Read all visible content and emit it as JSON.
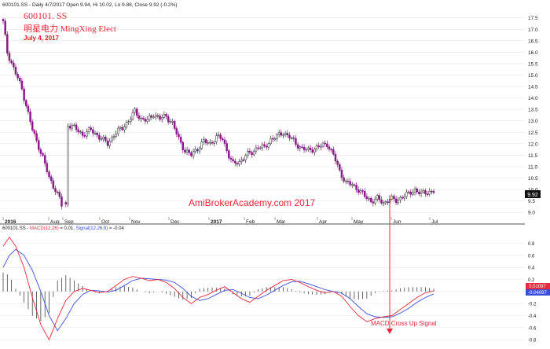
{
  "header": {
    "top_text": "600101.SS - Daily 4/7/2017 Open 9.94, Hi 10.02, Lo 9.88, Close 9.92 (-0.2%)",
    "symbol": "600101. SS",
    "name": "明星电力   MingXing Elect",
    "date": "July 4, 2017",
    "watermark": "AmiBrokerAcademy.com  2017"
  },
  "macd_header": {
    "prefix": "600101.SS - ",
    "macd_label": "MACD(12,26)",
    "macd_value": " = 0.01, ",
    "signal_label": "Signal(12,26,9)",
    "signal_value": " = -0.04"
  },
  "annotation": "MACD Cross Up Signal",
  "price_tag": "9.92",
  "macd_tags": [
    "0.01097",
    "-0.04097"
  ],
  "colors": {
    "up_candle": "#ffffff",
    "down_candle": "#8b1a8b",
    "candle_outline": "#333333",
    "macd_line": "#e8283c",
    "signal_line": "#3a4fd8",
    "histogram": "#444444",
    "red_text": "#e8283c",
    "date_text": "#d42020",
    "grid": "#e6e6e6"
  },
  "chart_data": [
    {
      "type": "candlestick",
      "title": "600101.SS - Daily 4/7/2017 Open 9.94, Hi 10.02, Lo 9.88, Close 9.92 (-0.2%)",
      "x_tick_labels": [
        "2016",
        "Aug",
        "Sep",
        "Oct",
        "Nov",
        "Dec",
        "2017",
        "Feb",
        "Mar",
        "Apr",
        "May",
        "Jun",
        "Jul"
      ],
      "y_tick_labels": [
        "9.0",
        "9.5",
        "10.0",
        "10.5",
        "11.0",
        "11.5",
        "12.0",
        "12.5",
        "13.0",
        "13.5",
        "14.0",
        "14.5",
        "15.0",
        "15.5",
        "16.0",
        "16.5",
        "17.0",
        "17.5"
      ],
      "ylim": [
        8.8,
        17.8
      ],
      "last_close": 9.92,
      "close_path": [
        [
          0,
          17.3
        ],
        [
          2,
          16.0
        ],
        [
          5,
          15.3
        ],
        [
          9,
          14.4
        ],
        [
          14,
          12.6
        ],
        [
          19,
          11.4
        ],
        [
          22,
          10.5
        ],
        [
          25,
          10.0
        ],
        [
          27,
          9.6
        ],
        [
          28,
          9.3
        ],
        [
          30,
          12.9
        ],
        [
          34,
          12.7
        ],
        [
          38,
          12.4
        ],
        [
          42,
          12.6
        ],
        [
          46,
          12.3
        ],
        [
          50,
          12.0
        ],
        [
          53,
          12.4
        ],
        [
          57,
          12.7
        ],
        [
          60,
          13.0
        ],
        [
          63,
          13.4
        ],
        [
          66,
          13.1
        ],
        [
          69,
          13.0
        ],
        [
          72,
          13.3
        ],
        [
          75,
          13.1
        ],
        [
          78,
          13.2
        ],
        [
          81,
          12.9
        ],
        [
          84,
          12.2
        ],
        [
          87,
          11.7
        ],
        [
          90,
          11.5
        ],
        [
          93,
          11.8
        ],
        [
          96,
          12.1
        ],
        [
          99,
          12.0
        ],
        [
          102,
          12.3
        ],
        [
          105,
          12.2
        ],
        [
          108,
          11.5
        ],
        [
          110,
          11.1
        ],
        [
          113,
          11.2
        ],
        [
          116,
          11.5
        ],
        [
          119,
          11.6
        ],
        [
          122,
          11.9
        ],
        [
          125,
          11.8
        ],
        [
          128,
          12.2
        ],
        [
          131,
          12.3
        ],
        [
          134,
          12.5
        ],
        [
          137,
          12.3
        ],
        [
          140,
          12.0
        ],
        [
          143,
          11.8
        ],
        [
          146,
          11.7
        ],
        [
          149,
          11.8
        ],
        [
          152,
          11.9
        ],
        [
          155,
          12.0
        ],
        [
          158,
          11.5
        ],
        [
          161,
          10.8
        ],
        [
          164,
          10.3
        ],
        [
          167,
          10.2
        ],
        [
          170,
          10.0
        ],
        [
          173,
          9.7
        ],
        [
          176,
          9.5
        ],
        [
          179,
          9.6
        ],
        [
          182,
          9.4
        ],
        [
          185,
          9.6
        ],
        [
          188,
          9.5
        ],
        [
          191,
          9.7
        ],
        [
          194,
          9.8
        ],
        [
          197,
          10.0
        ],
        [
          200,
          9.8
        ],
        [
          203,
          9.9
        ],
        [
          206,
          9.92
        ]
      ]
    },
    {
      "type": "line",
      "title": "600101.SS - MACD(12,26) = 0.01, Signal(12,26,9) = -0.04",
      "y_tick_labels": [
        "-0.8",
        "-0.6",
        "-0.4",
        "-0.2",
        "0",
        "0.2",
        "0.4",
        "0.6",
        "0.8"
      ],
      "ylim": [
        -0.85,
        0.95
      ],
      "x": [
        0,
        3,
        6,
        10,
        14,
        18,
        22,
        26,
        30,
        34,
        38,
        42,
        46,
        50,
        54,
        58,
        62,
        66,
        70,
        74,
        78,
        82,
        86,
        90,
        94,
        98,
        102,
        106,
        110,
        114,
        118,
        122,
        126,
        130,
        134,
        138,
        142,
        146,
        150,
        154,
        158,
        162,
        166,
        170,
        174,
        178,
        182,
        186,
        190,
        194,
        198,
        202,
        206
      ],
      "series": [
        {
          "name": "MACD(12,26)",
          "values": [
            0.75,
            0.9,
            0.75,
            0.4,
            -0.1,
            -0.55,
            -0.8,
            -0.45,
            -0.15,
            0.0,
            0.05,
            0.02,
            -0.02,
            0.0,
            0.1,
            0.2,
            0.25,
            0.22,
            0.18,
            0.2,
            0.15,
            0.05,
            -0.1,
            -0.2,
            -0.1,
            -0.05,
            0.02,
            0.08,
            -0.02,
            -0.12,
            -0.18,
            -0.08,
            0.02,
            0.1,
            0.18,
            0.2,
            0.15,
            0.08,
            0.02,
            -0.02,
            0.0,
            -0.08,
            -0.25,
            -0.4,
            -0.5,
            -0.45,
            -0.42,
            -0.4,
            -0.3,
            -0.2,
            -0.1,
            -0.02,
            0.01
          ]
        },
        {
          "name": "Signal(12,26,9)",
          "values": [
            0.4,
            0.6,
            0.7,
            0.6,
            0.35,
            0.0,
            -0.4,
            -0.65,
            -0.45,
            -0.2,
            -0.05,
            0.02,
            0.01,
            -0.01,
            0.02,
            0.1,
            0.18,
            0.22,
            0.21,
            0.2,
            0.19,
            0.15,
            0.05,
            -0.08,
            -0.15,
            -0.12,
            -0.05,
            0.02,
            0.03,
            -0.03,
            -0.1,
            -0.12,
            -0.06,
            0.02,
            0.1,
            0.16,
            0.17,
            0.13,
            0.08,
            0.03,
            0.0,
            -0.03,
            -0.12,
            -0.25,
            -0.37,
            -0.42,
            -0.43,
            -0.42,
            -0.36,
            -0.28,
            -0.18,
            -0.1,
            -0.04
          ]
        }
      ]
    }
  ]
}
